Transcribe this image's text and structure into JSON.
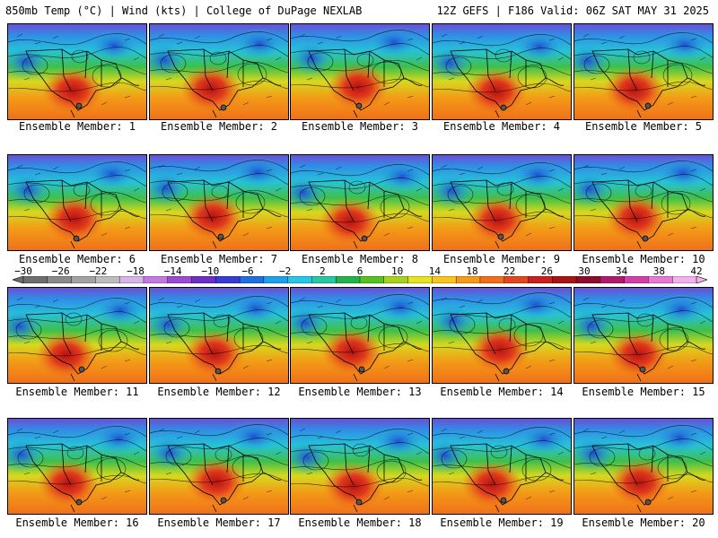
{
  "header": {
    "left_title": "850mb Temp (°C) | Wind (kts) | College of DuPage NEXLAB",
    "right_title": "12Z GEFS | F186 Valid: 06Z SAT MAY 31 2025"
  },
  "members": [
    {
      "label": "Ensemble Member: 1"
    },
    {
      "label": "Ensemble Member: 2"
    },
    {
      "label": "Ensemble Member: 3"
    },
    {
      "label": "Ensemble Member: 4"
    },
    {
      "label": "Ensemble Member: 5"
    },
    {
      "label": "Ensemble Member: 6"
    },
    {
      "label": "Ensemble Member: 7"
    },
    {
      "label": "Ensemble Member: 8"
    },
    {
      "label": "Ensemble Member: 9"
    },
    {
      "label": "Ensemble Member: 10"
    },
    {
      "label": "Ensemble Member: 11"
    },
    {
      "label": "Ensemble Member: 12"
    },
    {
      "label": "Ensemble Member: 13"
    },
    {
      "label": "Ensemble Member: 14"
    },
    {
      "label": "Ensemble Member: 15"
    },
    {
      "label": "Ensemble Member: 16"
    },
    {
      "label": "Ensemble Member: 17"
    },
    {
      "label": "Ensemble Member: 18"
    },
    {
      "label": "Ensemble Member: 19"
    },
    {
      "label": "Ensemble Member: 20"
    }
  ],
  "colorbar": {
    "ticks": [
      "−30",
      "−26",
      "−22",
      "−18",
      "−14",
      "−10",
      "−6",
      "−2",
      "2",
      "6",
      "10",
      "14",
      "18",
      "22",
      "26",
      "30",
      "34",
      "38",
      "42"
    ],
    "colors": [
      "#6e6e6e",
      "#8a8a8a",
      "#a3a3a3",
      "#bdbdbd",
      "#d7b5e8",
      "#c27ae0",
      "#9b4ad1",
      "#6a2fc4",
      "#3a3ad6",
      "#1f6fe0",
      "#1fa0ea",
      "#27c6e6",
      "#26c7a2",
      "#23b34a",
      "#56c21f",
      "#a6d21d",
      "#e9e31f",
      "#f7c51c",
      "#f59a17",
      "#f0701a",
      "#e3451d",
      "#cc1f1f",
      "#a81414",
      "#8a0d2a",
      "#b01a6d",
      "#d23fa8",
      "#e879d6",
      "#f2b1ec"
    ]
  }
}
